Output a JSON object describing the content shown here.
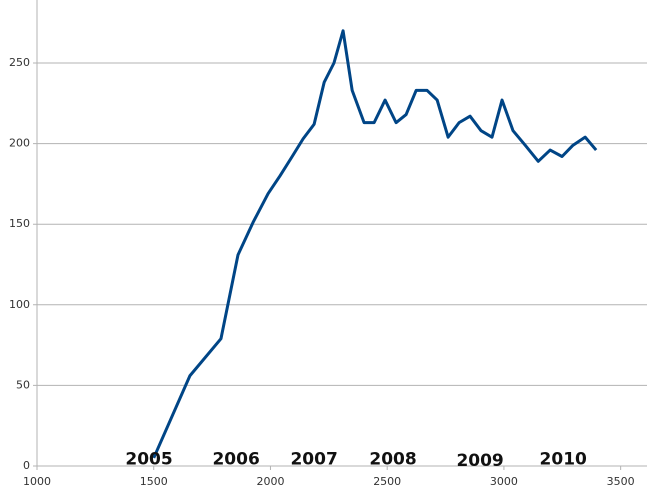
{
  "chart_data": {
    "type": "line",
    "x": [
      1500,
      1655,
      1788,
      1861,
      1925,
      1990,
      2041,
      2093,
      2140,
      2187,
      2230,
      2272,
      2311,
      2350,
      2401,
      2444,
      2491,
      2538,
      2581,
      2624,
      2671,
      2714,
      2761,
      2808,
      2855,
      2902,
      2949,
      2992,
      3039,
      3091,
      3147,
      3198,
      3249,
      3296,
      3348,
      3395
    ],
    "values": [
      5,
      56,
      79,
      131,
      151,
      169,
      180,
      192,
      203,
      212,
      238,
      250,
      270,
      233,
      213,
      213,
      227,
      213,
      218,
      233,
      233,
      227,
      204,
      213,
      217,
      208,
      204,
      227,
      208,
      199,
      189,
      196,
      192,
      199,
      204,
      196
    ],
    "color": "#004586",
    "xlim": [
      1000,
      3600
    ],
    "xticks": [
      1000,
      1500,
      2000,
      2500,
      3000,
      3500
    ],
    "ylim": [
      0,
      290
    ],
    "yticks": [
      0,
      50,
      100,
      150,
      200,
      250
    ],
    "grid": true,
    "annotations": [
      {
        "text": "2005",
        "x": 1480,
        "y": 4
      },
      {
        "text": "2006",
        "x": 1853,
        "y": 4
      },
      {
        "text": "2007",
        "x": 2187,
        "y": 4
      },
      {
        "text": "2008",
        "x": 2525,
        "y": 4
      },
      {
        "text": "2009",
        "x": 2898,
        "y": 3
      },
      {
        "text": "2010",
        "x": 3254,
        "y": 4
      }
    ]
  }
}
